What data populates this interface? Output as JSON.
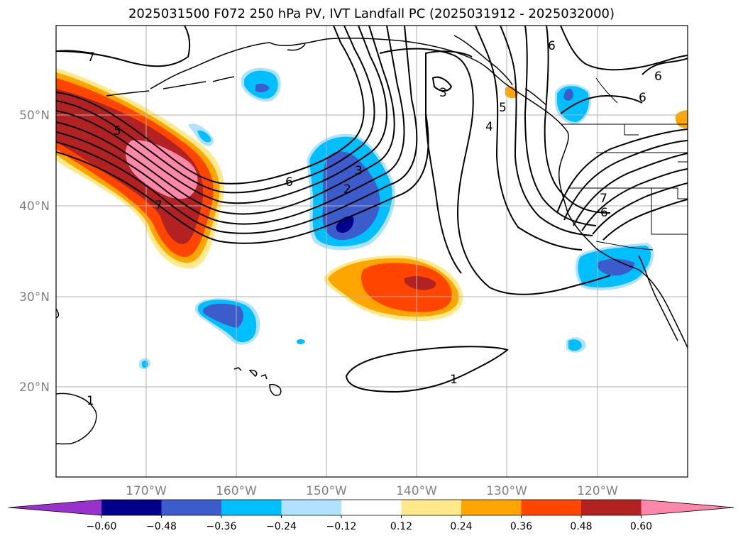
{
  "title": "2025031500 F072 250 hPa PV, IVT Landfall PC (2025031912 - 2025032000)",
  "map": {
    "projection": "PlateCarree",
    "lon_range": [
      -180,
      -110
    ],
    "lat_range": [
      10,
      60
    ],
    "lat_ticks": [
      "20°N",
      "30°N",
      "40°N",
      "50°N"
    ],
    "lon_ticks": [
      "170°W",
      "160°W",
      "150°W",
      "140°W",
      "130°W",
      "120°W"
    ],
    "grid": true
  },
  "contour_labels": [
    "7",
    "5",
    "7",
    "6",
    "3",
    "2",
    "3",
    "5",
    "4",
    "6",
    "6",
    "6",
    "7",
    "6",
    "1",
    "1"
  ],
  "colorbar": {
    "ticks": [
      "−0.60",
      "−0.48",
      "−0.36",
      "−0.24",
      "−0.12",
      "0.12",
      "0.24",
      "0.36",
      "0.48",
      "0.60"
    ],
    "colors": [
      "#9932cc",
      "#00008b",
      "#3d5ccc",
      "#00bfff",
      "#b0e2ff",
      "#ffffff",
      "#ffe98a",
      "#ffa500",
      "#ff4500",
      "#b22222",
      "#ff88aa"
    ],
    "extend": "both"
  }
}
